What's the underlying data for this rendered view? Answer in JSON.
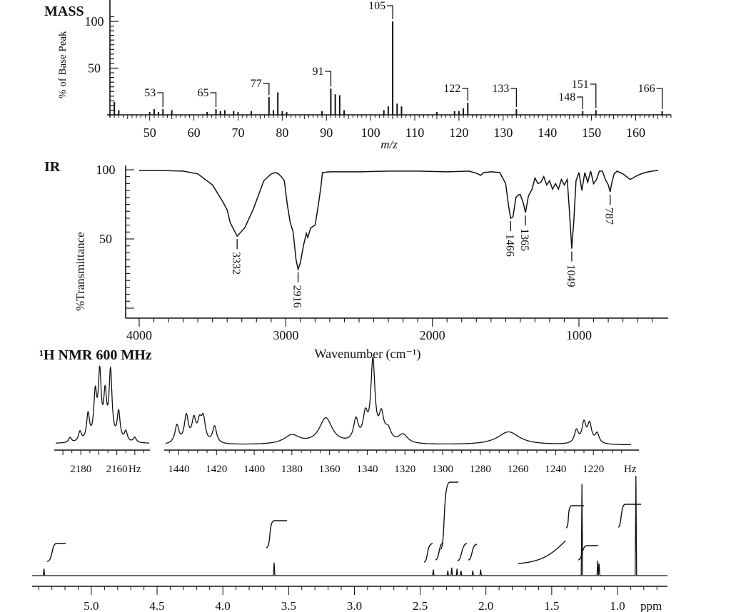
{
  "chart_data": [
    {
      "type": "bar",
      "panel": "mass",
      "title": "MASS",
      "xlabel": "m/z",
      "ylabel": "% of Base Peak",
      "xlim": [
        41,
        168
      ],
      "ylim": [
        0,
        108
      ],
      "x_ticks": [
        "50",
        "60",
        "70",
        "80",
        "90",
        "100",
        "110",
        "120",
        "130",
        "140",
        "150",
        "160"
      ],
      "y_ticks": [
        "100",
        "50"
      ],
      "peaks": [
        {
          "mz": 42,
          "rel": 14
        },
        {
          "mz": 43,
          "rel": 5
        },
        {
          "mz": 50,
          "rel": 3
        },
        {
          "mz": 51,
          "rel": 6
        },
        {
          "mz": 52,
          "rel": 3
        },
        {
          "mz": 53,
          "rel": 6
        },
        {
          "mz": 55,
          "rel": 5
        },
        {
          "mz": 63,
          "rel": 3
        },
        {
          "mz": 65,
          "rel": 6
        },
        {
          "mz": 66,
          "rel": 4
        },
        {
          "mz": 67,
          "rel": 5
        },
        {
          "mz": 69,
          "rel": 4
        },
        {
          "mz": 70,
          "rel": 3
        },
        {
          "mz": 73,
          "rel": 4
        },
        {
          "mz": 77,
          "rel": 19
        },
        {
          "mz": 78,
          "rel": 5
        },
        {
          "mz": 79,
          "rel": 24
        },
        {
          "mz": 80,
          "rel": 4
        },
        {
          "mz": 81,
          "rel": 3
        },
        {
          "mz": 89,
          "rel": 4
        },
        {
          "mz": 91,
          "rel": 28
        },
        {
          "mz": 92,
          "rel": 22
        },
        {
          "mz": 93,
          "rel": 21
        },
        {
          "mz": 94,
          "rel": 5
        },
        {
          "mz": 103,
          "rel": 5
        },
        {
          "mz": 104,
          "rel": 9
        },
        {
          "mz": 105,
          "rel": 100
        },
        {
          "mz": 106,
          "rel": 12
        },
        {
          "mz": 107,
          "rel": 9
        },
        {
          "mz": 115,
          "rel": 3
        },
        {
          "mz": 119,
          "rel": 4
        },
        {
          "mz": 120,
          "rel": 4
        },
        {
          "mz": 121,
          "rel": 7
        },
        {
          "mz": 122,
          "rel": 13
        },
        {
          "mz": 133,
          "rel": 6
        },
        {
          "mz": 148,
          "rel": 4
        },
        {
          "mz": 151,
          "rel": 5
        },
        {
          "mz": 166,
          "rel": 4
        }
      ],
      "annotations": [
        {
          "text": "105",
          "mz": 105
        },
        {
          "text": "91",
          "mz": 91
        },
        {
          "text": "77",
          "mz": 77
        },
        {
          "text": "65",
          "mz": 65
        },
        {
          "text": "53",
          "mz": 53
        },
        {
          "text": "122",
          "mz": 122
        },
        {
          "text": "133",
          "mz": 133
        },
        {
          "text": "151",
          "mz": 151
        },
        {
          "text": "148",
          "mz": 148
        },
        {
          "text": "166",
          "mz": 166
        }
      ]
    },
    {
      "type": "line",
      "panel": "ir",
      "title": "IR",
      "xlabel": "Wavenumber (cm⁻¹)",
      "ylabel": "%Transmittance",
      "xlim": [
        4000,
        450
      ],
      "ylim": [
        -4,
        102
      ],
      "x_ticks": [
        "4000",
        "3000",
        "2000",
        "1000"
      ],
      "y_ticks": [
        "100",
        "50"
      ],
      "series": [
        {
          "x": [
            4000,
            3850,
            3700,
            3600,
            3500,
            3430,
            3400,
            3380,
            3332,
            3280,
            3220,
            3150,
            3100,
            3070,
            3050,
            3030,
            3010,
            2990,
            2970,
            2950,
            2930,
            2916,
            2900,
            2880,
            2860,
            2850,
            2830,
            2800,
            2780,
            2760,
            2750,
            2700,
            2500,
            2300,
            2100,
            1900,
            1750,
            1700,
            1670,
            1650,
            1600,
            1540,
            1500,
            1480,
            1466,
            1450,
            1430,
            1410,
            1400,
            1380,
            1365,
            1345,
            1320,
            1300,
            1280,
            1260,
            1240,
            1220,
            1200,
            1180,
            1160,
            1140,
            1120,
            1100,
            1080,
            1065,
            1049,
            1035,
            1020,
            1000,
            980,
            960,
            940,
            920,
            900,
            880,
            860,
            840,
            820,
            800,
            787,
            775,
            760,
            740,
            700,
            650,
            600,
            550,
            500,
            460
          ],
          "y": [
            99.5,
            99.5,
            99,
            97,
            89,
            77,
            71,
            62,
            52,
            58,
            72,
            92,
            97,
            98,
            97,
            95,
            92,
            75,
            62,
            55,
            35,
            28,
            33,
            45,
            54,
            51,
            58,
            60,
            73,
            88,
            98,
            98.5,
            98.5,
            99,
            99,
            98.5,
            99,
            97.5,
            96,
            98,
            98.5,
            98,
            90,
            74,
            65,
            66,
            80,
            82,
            82,
            76,
            69,
            81,
            86,
            94,
            90,
            91,
            95,
            89,
            92,
            86,
            90,
            86,
            93,
            89,
            93,
            70,
            43,
            63,
            92,
            98,
            85,
            98,
            91,
            99,
            90,
            93,
            99,
            99,
            93,
            89,
            84,
            91,
            97,
            99,
            97,
            93,
            96,
            98,
            99,
            99.5
          ]
        }
      ],
      "annotations": [
        {
          "text": "3332",
          "x": 3332
        },
        {
          "text": "2916",
          "x": 2916
        },
        {
          "text": "1466",
          "x": 1466
        },
        {
          "text": "1365",
          "x": 1365
        },
        {
          "text": "1049",
          "x": 1049
        },
        {
          "text": "787",
          "x": 787
        }
      ]
    },
    {
      "type": "line",
      "panel": "nmr-inset-a",
      "title": "¹H NMR 600 MHz",
      "xlabel": "Hz",
      "xlim": [
        2194,
        2142
      ],
      "x_ticks": [
        "2180",
        "2160"
      ],
      "peaks": [
        {
          "hz": 2186,
          "h": 0.07,
          "w": 1.0
        },
        {
          "hz": 2180.5,
          "h": 0.14,
          "w": 1.0
        },
        {
          "hz": 2176,
          "h": 0.37,
          "w": 1.0
        },
        {
          "hz": 2172,
          "h": 0.62,
          "w": 1.0
        },
        {
          "hz": 2169.5,
          "h": 0.9,
          "w": 1.0
        },
        {
          "hz": 2166.5,
          "h": 0.6,
          "w": 1.0
        },
        {
          "hz": 2163.5,
          "h": 0.95,
          "w": 1.0
        },
        {
          "hz": 2159,
          "h": 0.4,
          "w": 1.0
        },
        {
          "hz": 2155,
          "h": 0.14,
          "w": 1.0
        },
        {
          "hz": 2150,
          "h": 0.07,
          "w": 1.0
        }
      ]
    },
    {
      "type": "line",
      "panel": "nmr-inset-b",
      "xlabel": "Hz",
      "xlim": [
        1447,
        1200
      ],
      "x_ticks": [
        "1440",
        "1420",
        "1400",
        "1380",
        "1360",
        "1340",
        "1320",
        "1300",
        "1280",
        "1260",
        "1240",
        "1220"
      ],
      "peaks": [
        {
          "hz": 1441,
          "h": 0.18,
          "w": 1.3
        },
        {
          "hz": 1436,
          "h": 0.27,
          "w": 1.3
        },
        {
          "hz": 1432,
          "h": 0.22,
          "w": 1.3
        },
        {
          "hz": 1429,
          "h": 0.18,
          "w": 1.3
        },
        {
          "hz": 1427,
          "h": 0.23,
          "w": 1.3
        },
        {
          "hz": 1421,
          "h": 0.17,
          "w": 1.3
        },
        {
          "hz": 1380,
          "h": 0.09,
          "w": 5
        },
        {
          "hz": 1362,
          "h": 0.26,
          "w": 4.2
        },
        {
          "hz": 1346,
          "h": 0.22,
          "w": 1.5
        },
        {
          "hz": 1341,
          "h": 0.25,
          "w": 1.5
        },
        {
          "hz": 1337,
          "h": 0.8,
          "w": 1.3
        },
        {
          "hz": 1332.5,
          "h": 0.25,
          "w": 1.5
        },
        {
          "hz": 1329,
          "h": 0.12,
          "w": 2
        },
        {
          "hz": 1321,
          "h": 0.09,
          "w": 3
        },
        {
          "hz": 1265,
          "h": 0.13,
          "w": 7
        },
        {
          "hz": 1229,
          "h": 0.13,
          "w": 1.3
        },
        {
          "hz": 1225,
          "h": 0.2,
          "w": 1.3
        },
        {
          "hz": 1222,
          "h": 0.19,
          "w": 1.3
        },
        {
          "hz": 1218,
          "h": 0.1,
          "w": 1.3
        }
      ]
    },
    {
      "type": "line",
      "panel": "nmr-main",
      "xlabel": "ppm",
      "xlim": [
        5.45,
        0.62
      ],
      "x_ticks": [
        "5.0",
        "4.5",
        "4.0",
        "3.5",
        "3.0",
        "2.5",
        "2.0",
        "1.5",
        "1.0"
      ],
      "peaks": [
        {
          "ppm": 5.36,
          "h": 0.07
        },
        {
          "ppm": 3.61,
          "h": 0.13
        },
        {
          "ppm": 2.4,
          "h": 0.06
        },
        {
          "ppm": 2.29,
          "h": 0.05
        },
        {
          "ppm": 2.26,
          "h": 0.08
        },
        {
          "ppm": 2.22,
          "h": 0.07
        },
        {
          "ppm": 2.19,
          "h": 0.05
        },
        {
          "ppm": 2.1,
          "h": 0.05
        },
        {
          "ppm": 2.04,
          "h": 0.06
        },
        {
          "ppm": 1.27,
          "h": 0.92
        },
        {
          "ppm": 1.15,
          "h": 0.15
        },
        {
          "ppm": 1.14,
          "h": 0.12
        },
        {
          "ppm": 0.86,
          "h": 1.0
        }
      ]
    }
  ]
}
